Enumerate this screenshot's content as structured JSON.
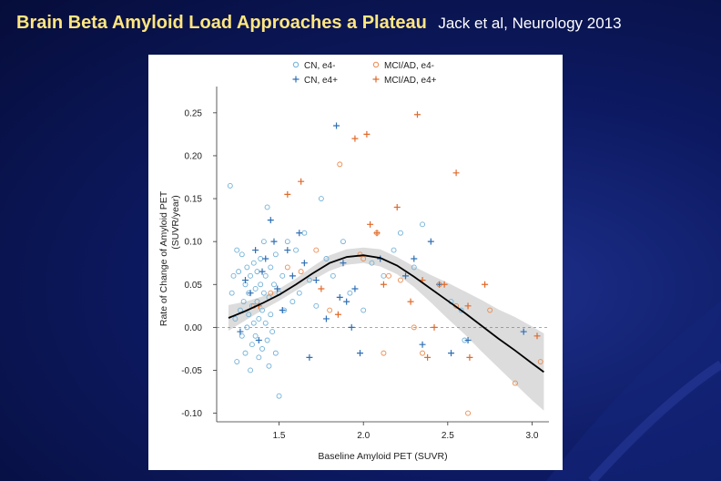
{
  "slide": {
    "title": "Brain Beta Amyloid Load Approaches a Plateau",
    "citation": "Jack et al, Neurology 2013"
  },
  "colors": {
    "cn": "#6fb0d8",
    "cn_plus": "#2f6fb3",
    "mci": "#e98a4e",
    "mci_plus": "#e06a2b",
    "fit": "#000000",
    "band": "#dcdcdc"
  },
  "chart_data": {
    "type": "scatter",
    "xlabel": "Baseline Amyloid PET (SUVR)",
    "ylabel": "Rate of Change of Amyloid PET (SUVR/year)",
    "xlim": [
      1.13,
      3.1
    ],
    "ylim": [
      -0.11,
      0.27
    ],
    "xticks": [
      1.5,
      2.0,
      2.5,
      3.0
    ],
    "xtick_labels": [
      "1.5",
      "2.0",
      "2.5",
      "3.0"
    ],
    "yticks": [
      -0.1,
      -0.05,
      0.0,
      0.05,
      0.1,
      0.15,
      0.2,
      0.25
    ],
    "ytick_labels": [
      "-0.10",
      "-0.05",
      "0.00",
      "0.05",
      "0.10",
      "0.15",
      "0.20",
      "0.25"
    ],
    "reference_line_y": 0.0,
    "legend": [
      {
        "label": "CN, e4-",
        "marker": "circle",
        "color": "#6fb0d8"
      },
      {
        "label": "MCI/AD, e4-",
        "marker": "circle",
        "color": "#e98a4e"
      },
      {
        "label": "CN, e4+",
        "marker": "plus",
        "color": "#2f6fb3"
      },
      {
        "label": "MCI/AD, e4+",
        "marker": "plus",
        "color": "#e06a2b"
      }
    ],
    "legend_position": "top",
    "series": [
      {
        "name": "CN, e4-",
        "marker": "circle",
        "points": [
          [
            1.21,
            0.165
          ],
          [
            1.22,
            0.04
          ],
          [
            1.23,
            0.06
          ],
          [
            1.24,
            0.01
          ],
          [
            1.25,
            -0.04
          ],
          [
            1.25,
            0.09
          ],
          [
            1.26,
            0.065
          ],
          [
            1.27,
            0.02
          ],
          [
            1.28,
            -0.01
          ],
          [
            1.28,
            0.085
          ],
          [
            1.29,
            0.03
          ],
          [
            1.3,
            0.05
          ],
          [
            1.3,
            -0.03
          ],
          [
            1.31,
            0.07
          ],
          [
            1.31,
            0.0
          ],
          [
            1.32,
            0.04
          ],
          [
            1.32,
            0.015
          ],
          [
            1.33,
            -0.05
          ],
          [
            1.33,
            0.06
          ],
          [
            1.34,
            0.025
          ],
          [
            1.34,
            -0.02
          ],
          [
            1.35,
            0.075
          ],
          [
            1.35,
            0.005
          ],
          [
            1.36,
            0.045
          ],
          [
            1.36,
            -0.01
          ],
          [
            1.37,
            0.03
          ],
          [
            1.37,
            0.065
          ],
          [
            1.38,
            0.01
          ],
          [
            1.38,
            -0.035
          ],
          [
            1.39,
            0.05
          ],
          [
            1.39,
            0.08
          ],
          [
            1.4,
            0.02
          ],
          [
            1.4,
            -0.025
          ],
          [
            1.41,
            0.1
          ],
          [
            1.41,
            0.04
          ],
          [
            1.42,
            0.005
          ],
          [
            1.42,
            0.06
          ],
          [
            1.43,
            -0.015
          ],
          [
            1.43,
            0.14
          ],
          [
            1.44,
            0.035
          ],
          [
            1.44,
            -0.045
          ],
          [
            1.45,
            0.07
          ],
          [
            1.45,
            0.015
          ],
          [
            1.46,
            -0.005
          ],
          [
            1.47,
            0.05
          ],
          [
            1.48,
            0.085
          ],
          [
            1.48,
            -0.03
          ],
          [
            1.5,
            0.04
          ],
          [
            1.5,
            -0.08
          ],
          [
            1.52,
            0.06
          ],
          [
            1.53,
            0.02
          ],
          [
            1.55,
            0.1
          ],
          [
            1.58,
            0.03
          ],
          [
            1.6,
            0.09
          ],
          [
            1.62,
            0.04
          ],
          [
            1.65,
            0.11
          ],
          [
            1.68,
            0.055
          ],
          [
            1.72,
            0.025
          ],
          [
            1.75,
            0.15
          ],
          [
            1.78,
            0.08
          ],
          [
            1.82,
            0.06
          ],
          [
            1.88,
            0.1
          ],
          [
            1.92,
            0.04
          ],
          [
            2.0,
            0.02
          ],
          [
            2.05,
            0.075
          ],
          [
            2.12,
            0.06
          ],
          [
            2.18,
            0.09
          ],
          [
            2.22,
            0.11
          ],
          [
            2.3,
            0.07
          ],
          [
            2.35,
            0.12
          ],
          [
            2.45,
            0.05
          ],
          [
            2.52,
            0.03
          ],
          [
            2.58,
            0.02
          ],
          [
            2.6,
            -0.015
          ]
        ]
      },
      {
        "name": "CN, e4+",
        "marker": "plus",
        "points": [
          [
            1.27,
            -0.005
          ],
          [
            1.3,
            0.055
          ],
          [
            1.33,
            0.04
          ],
          [
            1.36,
            0.09
          ],
          [
            1.38,
            -0.015
          ],
          [
            1.4,
            0.065
          ],
          [
            1.42,
            0.08
          ],
          [
            1.45,
            0.125
          ],
          [
            1.47,
            0.1
          ],
          [
            1.49,
            0.045
          ],
          [
            1.52,
            0.02
          ],
          [
            1.55,
            0.09
          ],
          [
            1.58,
            0.06
          ],
          [
            1.62,
            0.11
          ],
          [
            1.65,
            0.075
          ],
          [
            1.68,
            -0.035
          ],
          [
            1.72,
            0.055
          ],
          [
            1.78,
            0.01
          ],
          [
            1.84,
            0.235
          ],
          [
            1.86,
            0.035
          ],
          [
            1.88,
            0.075
          ],
          [
            1.9,
            0.03
          ],
          [
            1.93,
            0.0
          ],
          [
            1.95,
            0.045
          ],
          [
            1.98,
            -0.03
          ],
          [
            2.1,
            0.08
          ],
          [
            2.25,
            0.06
          ],
          [
            2.3,
            0.08
          ],
          [
            2.35,
            -0.02
          ],
          [
            2.4,
            0.1
          ],
          [
            2.45,
            0.05
          ],
          [
            2.52,
            -0.03
          ],
          [
            2.62,
            -0.015
          ],
          [
            2.95,
            -0.005
          ]
        ]
      },
      {
        "name": "MCI/AD, e4-",
        "marker": "circle",
        "points": [
          [
            1.35,
            0.025
          ],
          [
            1.45,
            0.04
          ],
          [
            1.55,
            0.07
          ],
          [
            1.63,
            0.065
          ],
          [
            1.72,
            0.09
          ],
          [
            1.8,
            0.02
          ],
          [
            1.86,
            0.19
          ],
          [
            1.98,
            0.085
          ],
          [
            2.0,
            0.08
          ],
          [
            2.08,
            0.11
          ],
          [
            2.12,
            -0.03
          ],
          [
            2.15,
            0.06
          ],
          [
            2.22,
            0.055
          ],
          [
            2.3,
            0.0
          ],
          [
            2.35,
            -0.03
          ],
          [
            2.45,
            0.05
          ],
          [
            2.55,
            0.025
          ],
          [
            2.62,
            -0.1
          ],
          [
            2.75,
            0.02
          ],
          [
            2.9,
            -0.065
          ],
          [
            3.05,
            -0.04
          ]
        ]
      },
      {
        "name": "MCI/AD, e4+",
        "marker": "plus",
        "points": [
          [
            1.38,
            0.025
          ],
          [
            1.55,
            0.155
          ],
          [
            1.63,
            0.17
          ],
          [
            1.75,
            0.045
          ],
          [
            1.85,
            0.015
          ],
          [
            1.95,
            0.22
          ],
          [
            2.02,
            0.225
          ],
          [
            2.04,
            0.12
          ],
          [
            2.08,
            0.11
          ],
          [
            2.12,
            0.05
          ],
          [
            2.2,
            0.14
          ],
          [
            2.28,
            0.03
          ],
          [
            2.32,
            0.248
          ],
          [
            2.35,
            0.055
          ],
          [
            2.38,
            -0.035
          ],
          [
            2.42,
            0.0
          ],
          [
            2.48,
            0.05
          ],
          [
            2.55,
            0.18
          ],
          [
            2.62,
            0.025
          ],
          [
            2.63,
            -0.035
          ],
          [
            2.72,
            0.05
          ],
          [
            3.03,
            -0.01
          ]
        ]
      }
    ],
    "fit_curve": {
      "x": [
        1.2,
        1.3,
        1.4,
        1.5,
        1.6,
        1.7,
        1.8,
        1.9,
        2.0,
        2.1,
        2.2,
        2.3,
        2.4,
        2.5,
        2.6,
        2.7,
        2.8,
        2.9,
        3.0,
        3.07
      ],
      "y": [
        0.011,
        0.019,
        0.028,
        0.038,
        0.05,
        0.063,
        0.075,
        0.082,
        0.084,
        0.081,
        0.072,
        0.059,
        0.045,
        0.031,
        0.017,
        0.002,
        -0.013,
        -0.027,
        -0.042,
        -0.052
      ],
      "lower": [
        -0.004,
        0.008,
        0.02,
        0.031,
        0.043,
        0.055,
        0.066,
        0.073,
        0.075,
        0.071,
        0.062,
        0.047,
        0.029,
        0.01,
        -0.008,
        -0.028,
        -0.047,
        -0.066,
        -0.085,
        -0.097
      ],
      "upper": [
        0.026,
        0.03,
        0.036,
        0.045,
        0.057,
        0.071,
        0.084,
        0.091,
        0.093,
        0.091,
        0.082,
        0.071,
        0.061,
        0.052,
        0.042,
        0.032,
        0.021,
        0.012,
        0.001,
        -0.007
      ]
    }
  }
}
